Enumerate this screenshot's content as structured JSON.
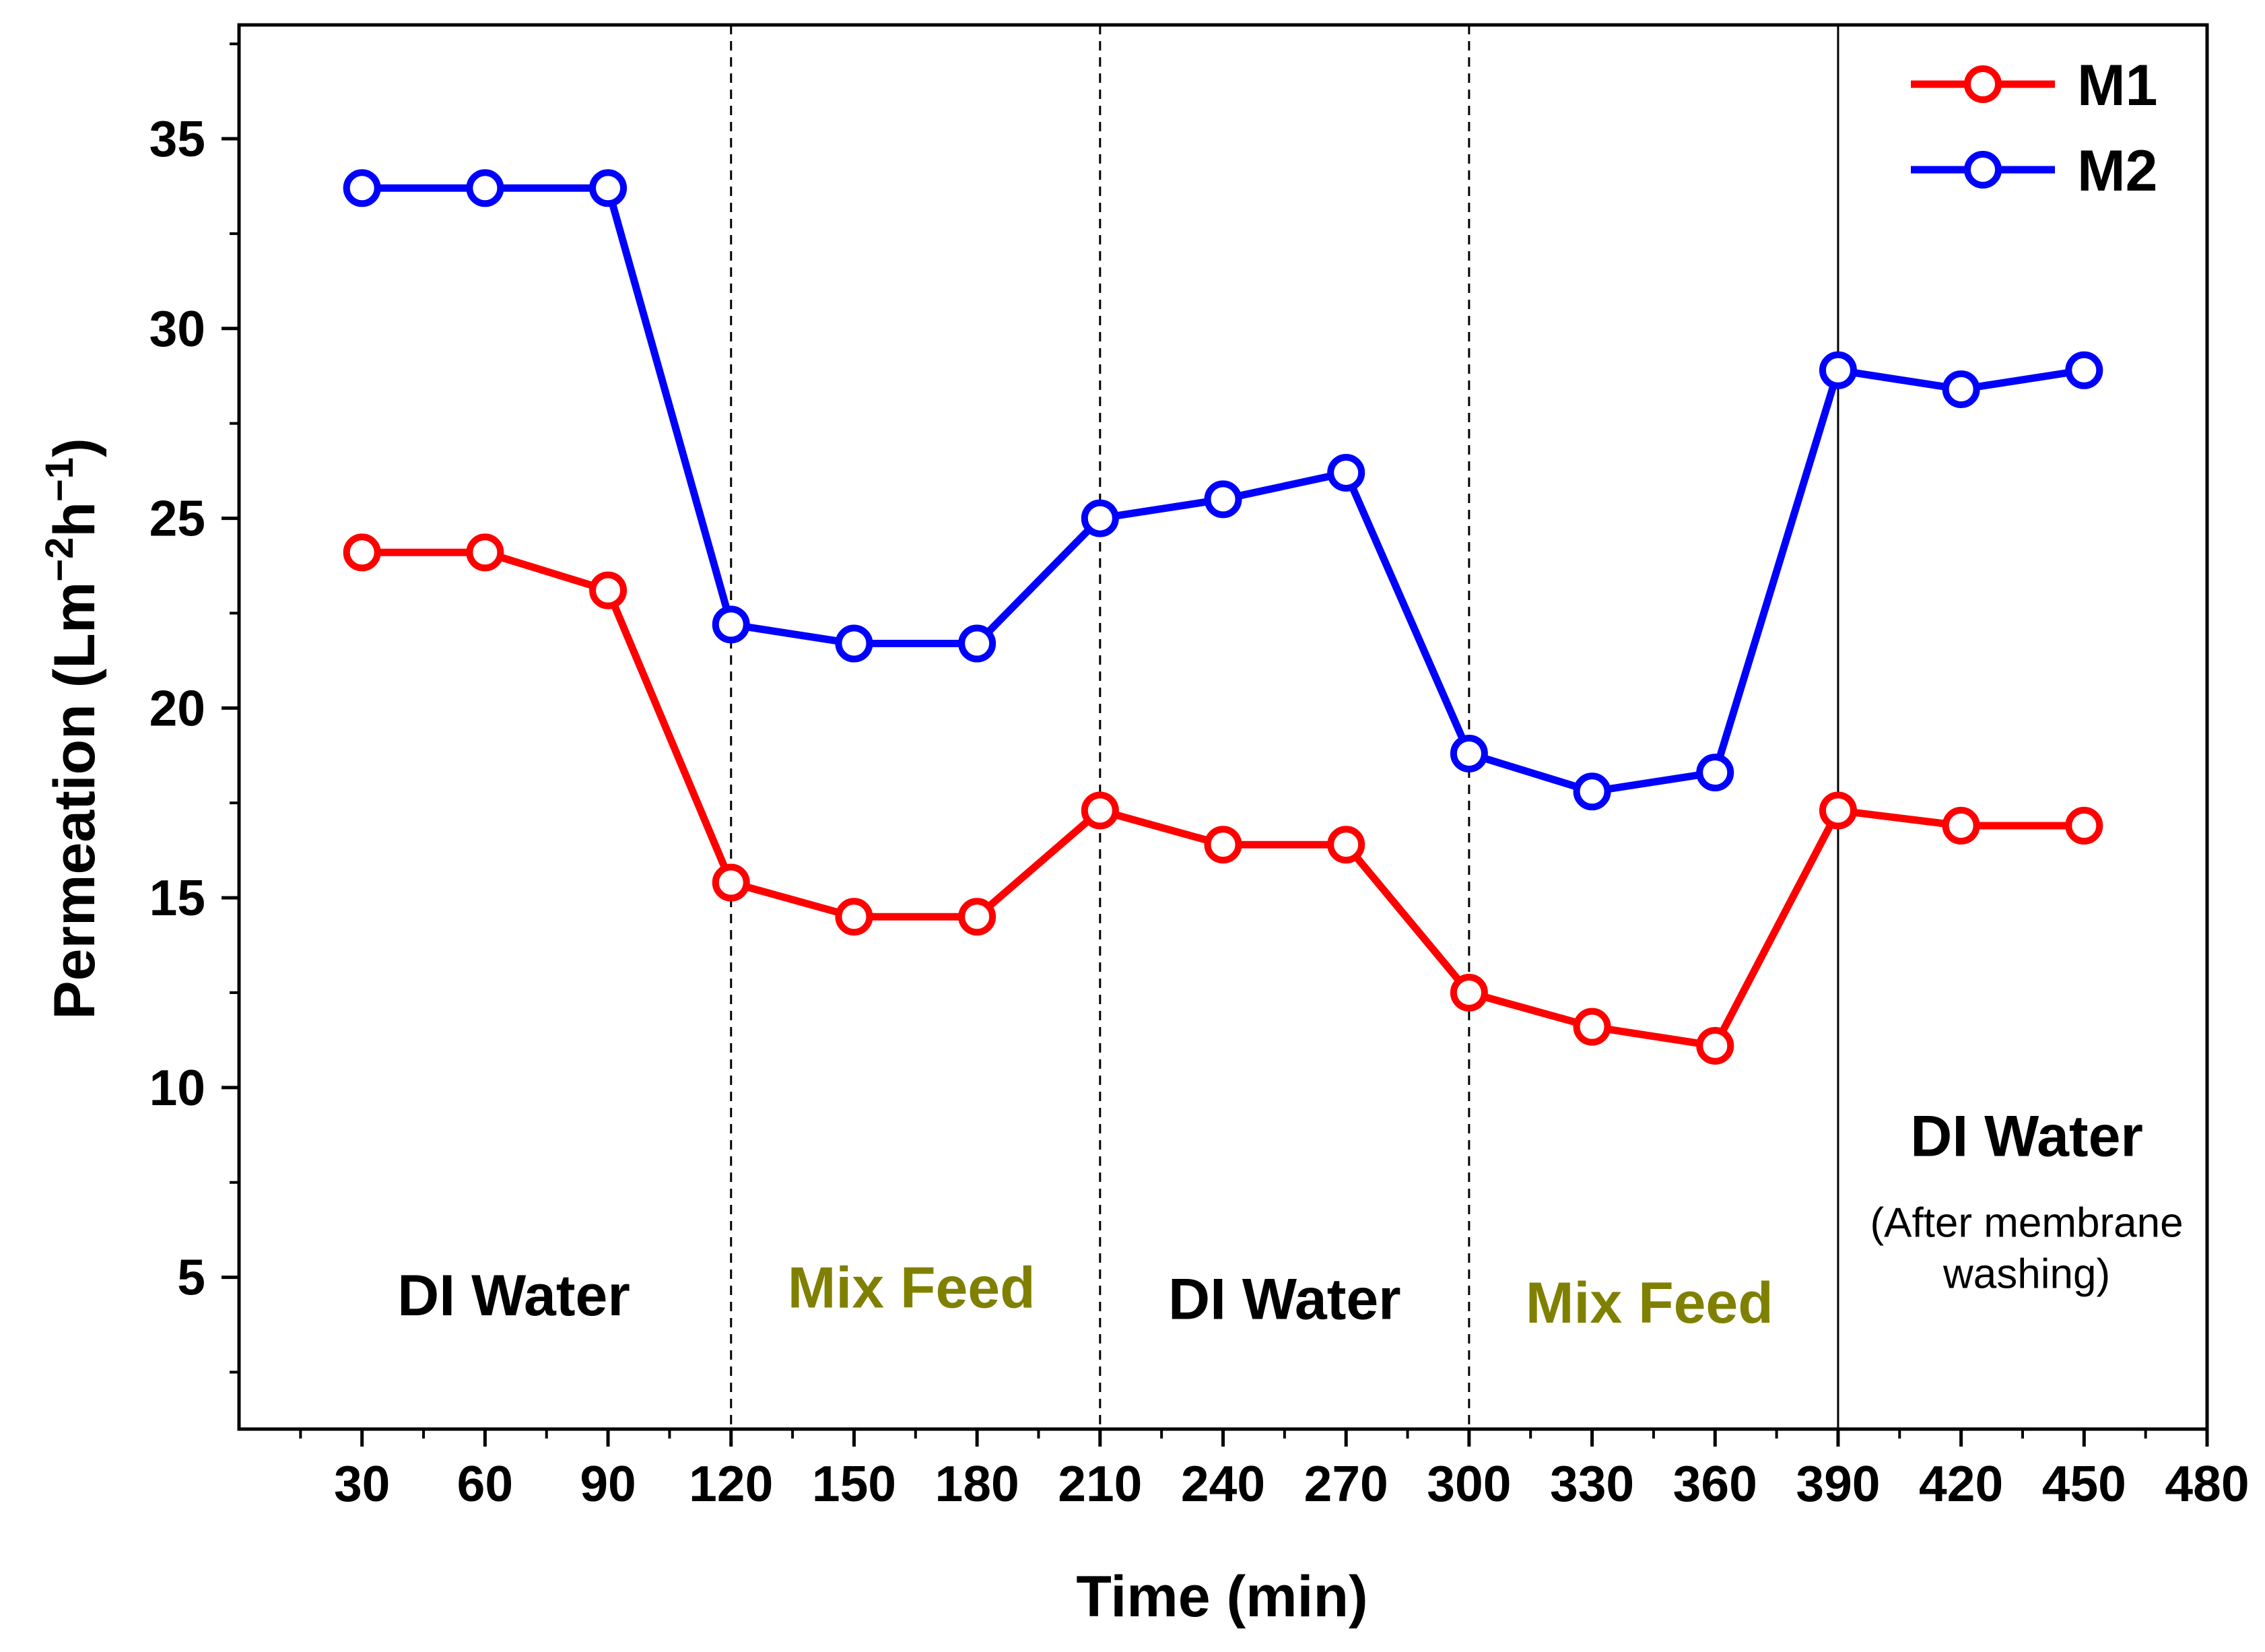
{
  "chart_data": {
    "type": "line",
    "title": "",
    "xlabel": "Time (min)",
    "ylabel_main": "Permeation (Lm",
    "ylabel_sup1": "−2",
    "ylabel_mid": "h",
    "ylabel_sup2": "−1",
    "ylabel_end": ")",
    "xlim": [
      0,
      480
    ],
    "ylim": [
      1,
      38
    ],
    "x_ticks": [
      30,
      60,
      90,
      120,
      150,
      180,
      210,
      240,
      270,
      300,
      330,
      360,
      390,
      420,
      450,
      480
    ],
    "y_ticks": [
      5,
      10,
      15,
      20,
      25,
      30,
      35
    ],
    "x": [
      30,
      60,
      90,
      120,
      150,
      180,
      210,
      240,
      270,
      300,
      330,
      360,
      390,
      420,
      450
    ],
    "series": [
      {
        "name": "M1",
        "color": "#ff0000",
        "values": [
          24.1,
          24.1,
          23.1,
          15.4,
          14.5,
          14.5,
          17.3,
          16.4,
          16.4,
          12.5,
          11.6,
          11.1,
          17.3,
          16.9,
          16.9
        ]
      },
      {
        "name": "M2",
        "color": "#0000ff",
        "values": [
          33.7,
          33.7,
          33.7,
          22.2,
          21.7,
          21.7,
          25.0,
          25.5,
          26.2,
          18.8,
          17.8,
          18.3,
          28.9,
          28.4,
          28.9
        ]
      }
    ],
    "dividers": [
      {
        "x": 120,
        "style": "dashed"
      },
      {
        "x": 210,
        "style": "dashed"
      },
      {
        "x": 300,
        "style": "dashed"
      },
      {
        "x": 390,
        "style": "solid"
      }
    ],
    "regions": [
      {
        "label": "DI Water",
        "color": "#000000",
        "cx": 67,
        "cy": 4.0
      },
      {
        "label": "Mix Feed",
        "color": "#808000",
        "cx": 164,
        "cy": 4.2
      },
      {
        "label": "DI Water",
        "color": "#000000",
        "cx": 255,
        "cy": 3.9
      },
      {
        "label": "Mix Feed",
        "color": "#808000",
        "cx": 344,
        "cy": 3.8
      },
      {
        "label": "DI Water",
        "color": "#000000",
        "cx": 436,
        "cy": 8.2,
        "sub1": "(After membrane",
        "sub2": "washing)"
      }
    ],
    "legend_position": "top-right"
  }
}
